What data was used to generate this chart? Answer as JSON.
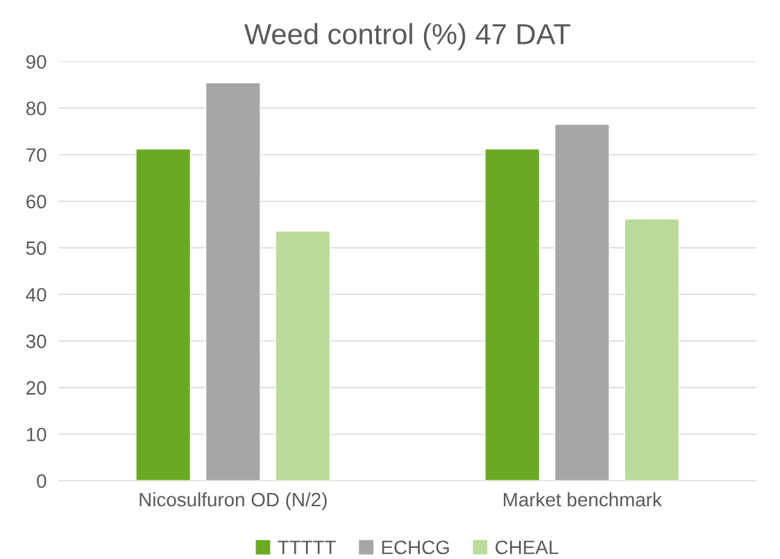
{
  "chart_data": {
    "type": "bar",
    "title": "Weed control (%) 47 DAT",
    "categories": [
      "Nicosulfuron OD (N/2)",
      "Market benchmark"
    ],
    "series": [
      {
        "name": "TTTTT",
        "color": "#6aaa23",
        "values": [
          71.2,
          71.2
        ]
      },
      {
        "name": "ECHCG",
        "color": "#a6a6a6",
        "values": [
          85.4,
          76.5
        ]
      },
      {
        "name": "CHEAL",
        "color": "#bbdb9a",
        "values": [
          53.6,
          56.2
        ]
      }
    ],
    "ylim": [
      0,
      90
    ],
    "yticks": [
      0,
      10,
      20,
      30,
      40,
      50,
      60,
      70,
      80,
      90
    ],
    "grid": "y",
    "legend": "bottom"
  }
}
